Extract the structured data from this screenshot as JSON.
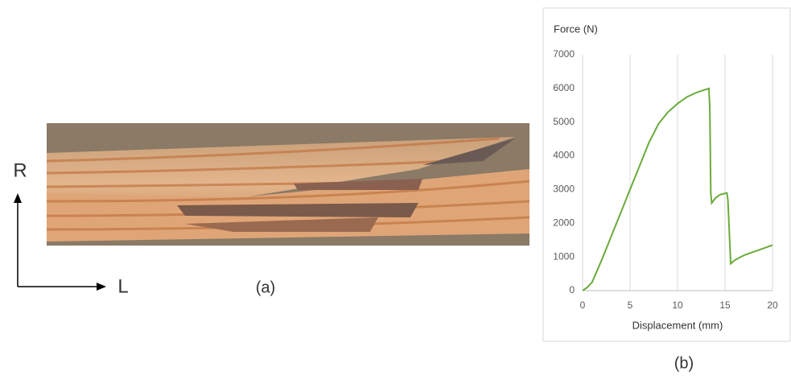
{
  "chart_data": {
    "type": "line",
    "y_label": "Force (N)",
    "x_label": "Displacement (mm)",
    "xlim": [
      0,
      20
    ],
    "xticks": [
      0,
      5,
      10,
      15,
      20
    ],
    "ylim": [
      0,
      7000
    ],
    "yticks": [
      0,
      1000,
      2000,
      3000,
      4000,
      5000,
      6000,
      7000
    ],
    "grid": "x",
    "series": [
      {
        "color": "#6aab3a",
        "x": [
          0,
          0.5,
          1,
          2,
          3,
          4,
          5,
          6,
          7,
          8,
          9,
          10,
          11,
          12,
          13.3,
          13.4,
          13.5,
          13.6,
          14,
          14.5,
          15.2,
          15.3,
          15.6,
          16,
          17,
          18,
          19,
          20
        ],
        "values": [
          0,
          100,
          250,
          900,
          1600,
          2300,
          3000,
          3700,
          4400,
          4950,
          5300,
          5550,
          5750,
          5880,
          6000,
          5400,
          2900,
          2600,
          2750,
          2850,
          2900,
          2700,
          800,
          900,
          1050,
          1150,
          1250,
          1350
        ]
      }
    ]
  },
  "figure": {
    "axis_r": "R",
    "axis_l": "L",
    "panel_a": "(a)",
    "panel_b": "(b)"
  }
}
